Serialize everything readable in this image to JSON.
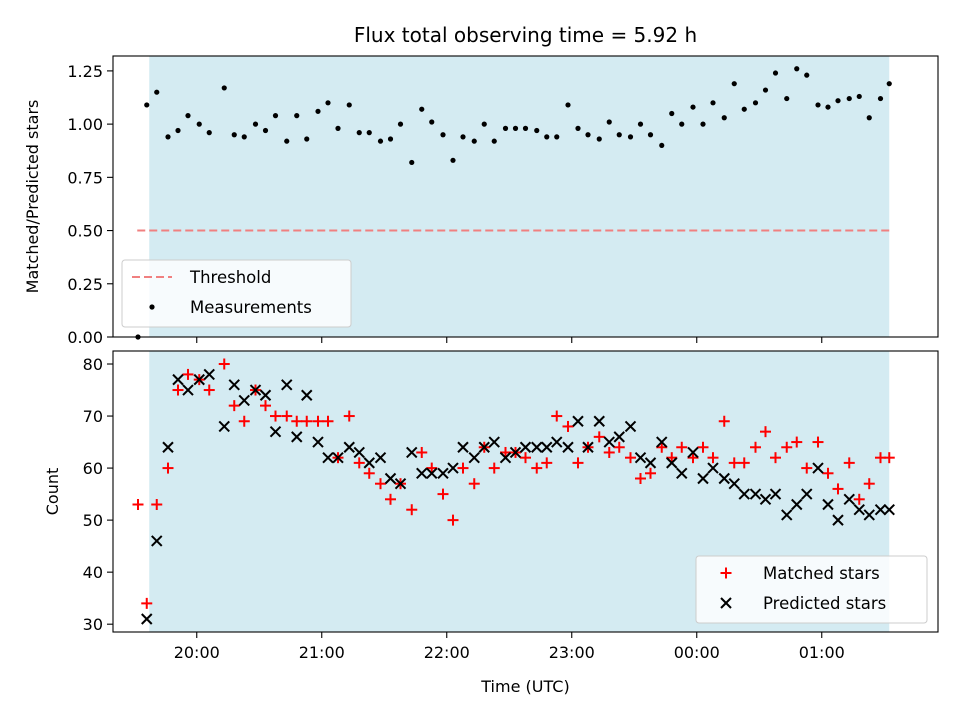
{
  "chart_data": [
    {
      "type": "scatter",
      "title": "Flux total observing time = 5.92 h",
      "xlabel": "",
      "ylabel": "Matched/Predicted stars",
      "ylim": [
        0,
        1.32
      ],
      "yticks": [
        "0.00",
        "0.25",
        "0.50",
        "0.75",
        "1.00",
        "1.25"
      ],
      "ytick_values": [
        0,
        0.25,
        0.5,
        0.75,
        1.0,
        1.25
      ],
      "xlim_hours": [
        19.33,
        25.93
      ],
      "observing_span_hours": [
        19.62,
        25.54
      ],
      "threshold": {
        "name": "Threshold",
        "value": 0.5,
        "color": "#f08080"
      },
      "series": [
        {
          "name": "Measurements",
          "color": "#000000",
          "x_hours": [
            19.53,
            19.6,
            19.68,
            19.77,
            19.85,
            19.93,
            20.02,
            20.1,
            20.22,
            20.3,
            20.38,
            20.47,
            20.55,
            20.63,
            20.72,
            20.8,
            20.88,
            20.97,
            21.05,
            21.13,
            21.22,
            21.3,
            21.38,
            21.47,
            21.55,
            21.63,
            21.72,
            21.8,
            21.88,
            21.97,
            22.05,
            22.13,
            22.22,
            22.3,
            22.38,
            22.47,
            22.55,
            22.63,
            22.72,
            22.8,
            22.88,
            22.97,
            23.05,
            23.13,
            23.22,
            23.3,
            23.38,
            23.47,
            23.55,
            23.63,
            23.72,
            23.8,
            23.88,
            23.97,
            24.05,
            24.13,
            24.22,
            24.3,
            24.38,
            24.47,
            24.55,
            24.63,
            24.72,
            24.8,
            24.88,
            24.97,
            25.05,
            25.13,
            25.22,
            25.3,
            25.38,
            25.47,
            25.54
          ],
          "y": [
            0.0,
            1.09,
            1.15,
            0.94,
            0.97,
            1.04,
            1.0,
            0.96,
            1.17,
            0.95,
            0.94,
            1.0,
            0.97,
            1.04,
            0.92,
            1.04,
            0.93,
            1.06,
            1.1,
            0.98,
            1.09,
            0.96,
            0.96,
            0.92,
            0.93,
            1.0,
            0.82,
            1.07,
            1.01,
            0.95,
            0.83,
            0.94,
            0.92,
            1.0,
            0.92,
            0.98,
            0.98,
            0.98,
            0.97,
            0.94,
            0.94,
            1.09,
            0.98,
            0.95,
            0.93,
            1.01,
            0.95,
            0.94,
            1.0,
            0.95,
            0.9,
            1.05,
            1.0,
            1.08,
            1.0,
            1.1,
            1.03,
            1.19,
            1.07,
            1.1,
            1.16,
            1.24,
            1.12,
            1.26,
            1.23,
            1.09,
            1.08,
            1.11,
            1.12,
            1.13,
            1.03,
            1.12,
            1.19
          ]
        }
      ]
    },
    {
      "type": "scatter",
      "title": "",
      "xlabel": "Time (UTC)",
      "ylabel": "Count",
      "ylim": [
        28.5,
        82.5
      ],
      "yticks": [
        "30",
        "40",
        "50",
        "60",
        "70",
        "80"
      ],
      "ytick_values": [
        30,
        40,
        50,
        60,
        70,
        80
      ],
      "xticks": [
        "20:00",
        "21:00",
        "22:00",
        "23:00",
        "00:00",
        "01:00"
      ],
      "xtick_hours": [
        20,
        21,
        22,
        23,
        24,
        25
      ],
      "xlim_hours": [
        19.33,
        25.93
      ],
      "observing_span_hours": [
        19.62,
        25.54
      ],
      "legend": "lower-right",
      "series": [
        {
          "name": "Matched stars",
          "marker": "plus",
          "color": "#ff0000",
          "x_hours": [
            19.53,
            19.6,
            19.68,
            19.77,
            19.85,
            19.93,
            20.02,
            20.1,
            20.22,
            20.3,
            20.38,
            20.47,
            20.55,
            20.63,
            20.72,
            20.8,
            20.88,
            20.97,
            21.05,
            21.13,
            21.22,
            21.3,
            21.38,
            21.47,
            21.55,
            21.63,
            21.72,
            21.8,
            21.88,
            21.97,
            22.05,
            22.13,
            22.22,
            22.3,
            22.38,
            22.47,
            22.55,
            22.63,
            22.72,
            22.8,
            22.88,
            22.97,
            23.05,
            23.13,
            23.22,
            23.3,
            23.38,
            23.47,
            23.55,
            23.63,
            23.72,
            23.8,
            23.88,
            23.97,
            24.05,
            24.13,
            24.22,
            24.3,
            24.38,
            24.47,
            24.55,
            24.63,
            24.72,
            24.8,
            24.88,
            24.97,
            25.05,
            25.13,
            25.22,
            25.3,
            25.38,
            25.47,
            25.54
          ],
          "y": [
            53,
            34,
            53,
            60,
            75,
            78,
            77,
            75,
            80,
            72,
            69,
            75,
            72,
            70,
            70,
            69,
            69,
            69,
            69,
            62,
            70,
            61,
            59,
            57,
            54,
            57,
            52,
            63,
            60,
            55,
            50,
            60,
            57,
            64,
            60,
            63,
            63,
            62,
            60,
            61,
            70,
            68,
            61,
            64,
            66,
            63,
            64,
            62,
            58,
            59,
            64,
            62,
            64,
            62,
            64,
            62,
            69,
            61,
            61,
            64,
            67,
            62,
            64,
            65,
            60,
            65,
            59,
            56,
            61,
            54,
            57,
            62,
            62
          ]
        },
        {
          "name": "Predicted stars",
          "marker": "x",
          "color": "#000000",
          "x_hours": [
            19.6,
            19.68,
            19.77,
            19.85,
            19.93,
            20.02,
            20.1,
            20.22,
            20.3,
            20.38,
            20.47,
            20.55,
            20.63,
            20.72,
            20.8,
            20.88,
            20.97,
            21.05,
            21.13,
            21.22,
            21.3,
            21.38,
            21.47,
            21.55,
            21.63,
            21.72,
            21.8,
            21.88,
            21.97,
            22.05,
            22.13,
            22.22,
            22.3,
            22.38,
            22.47,
            22.55,
            22.63,
            22.72,
            22.8,
            22.88,
            22.97,
            23.05,
            23.13,
            23.22,
            23.3,
            23.38,
            23.47,
            23.55,
            23.63,
            23.72,
            23.8,
            23.88,
            23.97,
            24.05,
            24.13,
            24.22,
            24.3,
            24.38,
            24.47,
            24.55,
            24.63,
            24.72,
            24.8,
            24.88,
            24.97,
            25.05,
            25.13,
            25.22,
            25.3,
            25.38,
            25.47,
            25.54
          ],
          "y": [
            31,
            46,
            64,
            77,
            75,
            77,
            78,
            68,
            76,
            73,
            75,
            74,
            67,
            76,
            66,
            74,
            65,
            62,
            62,
            64,
            63,
            61,
            62,
            58,
            57,
            63,
            59,
            59,
            59,
            60,
            64,
            62,
            64,
            65,
            62,
            63,
            64,
            64,
            64,
            65,
            64,
            69,
            64,
            69,
            65,
            66,
            68,
            62,
            61,
            65,
            61,
            59,
            63,
            58,
            60,
            58,
            57,
            55,
            55,
            54,
            55,
            51,
            53,
            55,
            60,
            53,
            50,
            54,
            52,
            51,
            52,
            52
          ]
        }
      ]
    }
  ]
}
